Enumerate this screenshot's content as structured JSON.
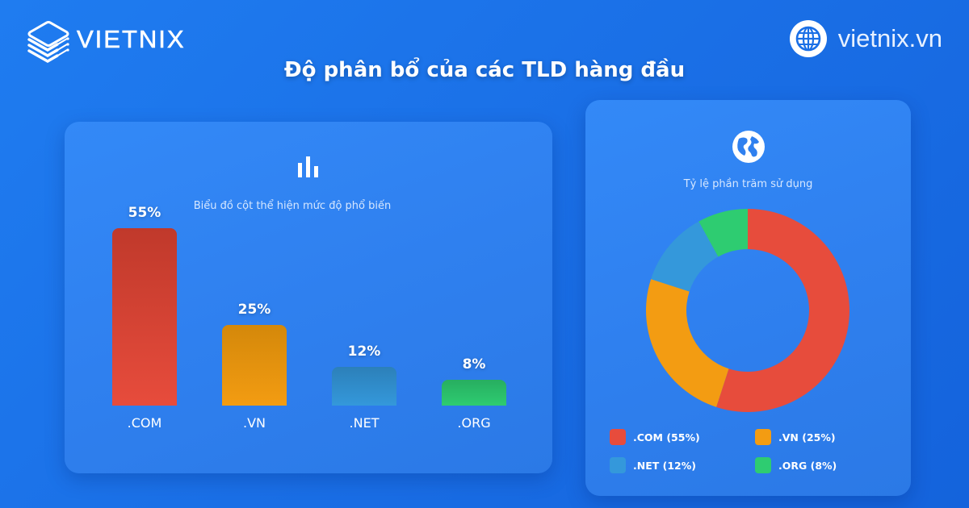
{
  "brand": {
    "logo_text": "VIETNIX",
    "logo_icon": "server-stack-icon",
    "site_icon": "globe-grid-icon",
    "site_text": "vietnix.vn"
  },
  "page": {
    "title": "Độ phân bổ của các TLD hàng đầu"
  },
  "colors": {
    "background": "#1a6fe6",
    "card": "#2f80ef",
    "com": "#e74c3c",
    "vn": "#f39c12",
    "net": "#3498db",
    "org": "#2ecc71"
  },
  "bar_card": {
    "icon": "bar-chart-icon",
    "subtitle": "Biểu đồ cột thể hiện mức độ phổ biến"
  },
  "pie_card": {
    "icon": "globe-icon",
    "subtitle": "Tỷ lệ phần trăm sử dụng",
    "legend": [
      {
        "label": ".COM (55%)",
        "color": "#e74c3c"
      },
      {
        "label": ".VN (25%)",
        "color": "#f39c12"
      },
      {
        "label": ".NET (12%)",
        "color": "#3498db"
      },
      {
        "label": ".ORG (8%)",
        "color": "#2ecc71"
      }
    ]
  },
  "chart_data": [
    {
      "type": "bar",
      "title": "Biểu đồ cột thể hiện mức độ phổ biến",
      "categories": [
        ".COM",
        ".VN",
        ".NET",
        ".ORG"
      ],
      "values": [
        55,
        25,
        12,
        8
      ],
      "value_labels": [
        "55%",
        "25%",
        "12%",
        "8%"
      ],
      "colors": [
        "#e74c3c",
        "#f39c12",
        "#3498db",
        "#2ecc71"
      ],
      "xlabel": "",
      "ylabel": "",
      "grid": false,
      "legend": "none"
    },
    {
      "type": "pie",
      "variant": "donut",
      "title": "Tỷ lệ phần trăm sử dụng",
      "categories": [
        ".COM",
        ".VN",
        ".NET",
        ".ORG"
      ],
      "values": [
        55,
        25,
        12,
        8
      ],
      "colors": [
        "#e74c3c",
        "#f39c12",
        "#3498db",
        "#2ecc71"
      ],
      "legend_position": "bottom",
      "start_angle": "top, clockwise"
    }
  ]
}
